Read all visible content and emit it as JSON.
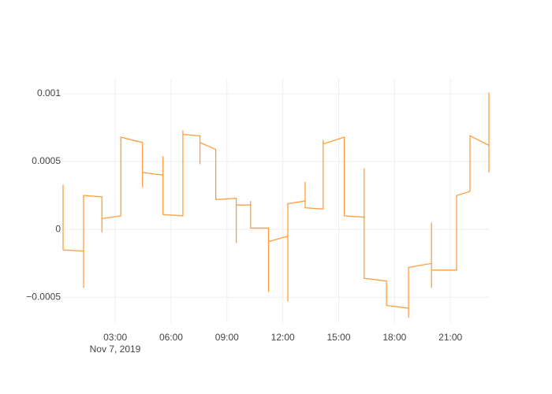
{
  "chart_data": {
    "type": "line",
    "x": [
      "2019-11-07 00:12",
      "2019-11-07 00:12",
      "2019-11-07 01:18",
      "2019-11-07 01:18",
      "2019-11-07 01:18",
      "2019-11-07 02:17",
      "2019-11-07 02:17",
      "2019-11-07 02:17",
      "2019-11-07 03:18",
      "2019-11-07 03:18",
      "2019-11-07 04:28",
      "2019-11-07 04:28",
      "2019-11-07 04:28",
      "2019-11-07 05:34",
      "2019-11-07 05:34",
      "2019-11-07 05:34",
      "2019-11-07 06:38",
      "2019-11-07 06:38",
      "2019-11-07 06:38",
      "2019-11-07 07:33",
      "2019-11-07 07:33",
      "2019-11-07 07:33",
      "2019-11-07 08:24",
      "2019-11-07 08:24",
      "2019-11-07 09:30",
      "2019-11-07 09:30",
      "2019-11-07 09:30",
      "2019-11-07 10:16",
      "2019-11-07 10:16",
      "2019-11-07 10:16",
      "2019-11-07 11:14",
      "2019-11-07 11:14",
      "2019-11-07 11:14",
      "2019-11-07 12:16",
      "2019-11-07 12:16",
      "2019-11-07 12:16",
      "2019-11-07 13:12",
      "2019-11-07 13:12",
      "2019-11-07 13:12",
      "2019-11-07 14:10",
      "2019-11-07 14:10",
      "2019-11-07 14:10",
      "2019-11-07 15:18",
      "2019-11-07 15:18",
      "2019-11-07 16:22",
      "2019-11-07 16:22",
      "2019-11-07 16:22",
      "2019-11-07 17:34",
      "2019-11-07 17:34",
      "2019-11-07 18:45",
      "2019-11-07 18:45",
      "2019-11-07 18:45",
      "2019-11-07 19:59",
      "2019-11-07 19:59",
      "2019-11-07 19:59",
      "2019-11-07 19:59",
      "2019-11-07 21:20",
      "2019-11-07 21:20",
      "2019-11-07 22:03",
      "2019-11-07 22:03",
      "2019-11-07 23:04",
      "2019-11-07 23:04",
      "2019-11-07 23:04"
    ],
    "series": [
      {
        "color": "#ff9e3d",
        "values": [
          0.00033,
          -0.00015,
          -0.00016,
          -0.00043,
          0.00025,
          0.00024,
          -2e-05,
          8e-05,
          0.0001,
          0.00068,
          0.00064,
          0.00031,
          0.00042,
          0.0004,
          0.00054,
          0.00011,
          0.0001,
          0.00073,
          0.0007,
          0.00069,
          0.00048,
          0.00064,
          0.00059,
          0.00022,
          0.00023,
          -0.0001,
          0.00018,
          0.00018,
          0.00021,
          1e-05,
          1e-05,
          -0.00046,
          -9e-05,
          -5e-05,
          -0.00053,
          0.00019,
          0.00021,
          0.00035,
          0.00016,
          0.00015,
          0.00066,
          0.00063,
          0.00068,
          0.0001,
          9e-05,
          0.00045,
          -0.00036,
          -0.00038,
          -0.00056,
          -0.00058,
          -0.00065,
          -0.00028,
          -0.00025,
          5e-05,
          -0.00043,
          -0.0003,
          -0.0003,
          0.00025,
          0.00028,
          0.00069,
          0.00062,
          0.00101,
          0.00042
        ]
      }
    ],
    "xlim": [
      "2019-11-07 00:12",
      "2019-11-07 23:04"
    ],
    "xticks": [
      {
        "value": "2019-11-07 03:00",
        "label": "03:00"
      },
      {
        "value": "2019-11-07 06:00",
        "label": "06:00"
      },
      {
        "value": "2019-11-07 09:00",
        "label": "09:00"
      },
      {
        "value": "2019-11-07 12:00",
        "label": "12:00"
      },
      {
        "value": "2019-11-07 15:00",
        "label": "15:00"
      },
      {
        "value": "2019-11-07 18:00",
        "label": "18:00"
      },
      {
        "value": "2019-11-07 21:00",
        "label": "21:00"
      }
    ],
    "x_date_label": "Nov 7, 2019",
    "ylim": [
      -0.00069,
      0.00111
    ],
    "yticks": [
      {
        "value": -0.0005,
        "label": "−0.0005"
      },
      0,
      0.0005,
      0.001
    ],
    "grid": true
  }
}
